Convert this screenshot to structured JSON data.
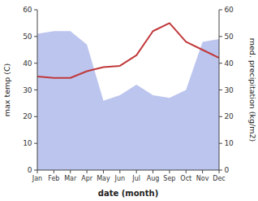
{
  "chart_data": {
    "type": "line",
    "categories": [
      "Jan",
      "Feb",
      "Mar",
      "Apr",
      "May",
      "Jun",
      "Jul",
      "Aug",
      "Sep",
      "Oct",
      "Nov",
      "Dec"
    ],
    "series": [
      {
        "type": "area",
        "color": "#bcc5ee",
        "axis": "y2",
        "values": [
          51,
          52,
          52,
          47,
          26,
          28,
          32,
          28,
          27,
          30,
          48,
          49
        ]
      },
      {
        "type": "line",
        "color": "#c0393b",
        "values": [
          35,
          34.5,
          34.5,
          37,
          38.5,
          39,
          43,
          52,
          55,
          48,
          45,
          42
        ]
      }
    ],
    "xlabel": "date (month)",
    "ylabel": "max temp (C)",
    "y2label": "med. precipitation (kg/m2)",
    "ylim": [
      0,
      60
    ],
    "yticks": [
      0,
      10,
      20,
      30,
      40,
      50,
      60
    ],
    "y2lim": [
      0,
      60
    ],
    "y2ticks": [
      0,
      10,
      20,
      30,
      40,
      50,
      60
    ],
    "grid": false
  }
}
